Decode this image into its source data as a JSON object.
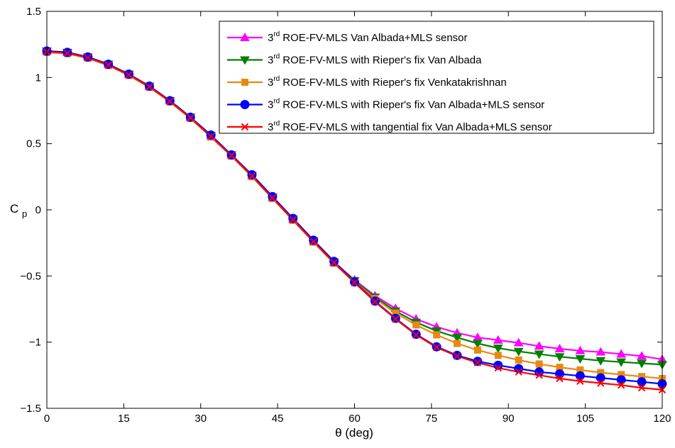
{
  "chart_data": {
    "type": "line",
    "xlabel": "θ (deg)",
    "ylabel": "C",
    "ylabel_subscript": "p",
    "xlim": [
      0,
      120
    ],
    "ylim": [
      -1.5,
      1.5
    ],
    "xticks": [
      "0",
      "15",
      "30",
      "45",
      "60",
      "75",
      "90",
      "105",
      "120"
    ],
    "yticks": [
      "-1.5",
      "-1",
      "-0.5",
      "0",
      "0.5",
      "1",
      "1.5"
    ],
    "grid": false,
    "legend_position": "top-right",
    "x": [
      0,
      4,
      8,
      12,
      16,
      20,
      24,
      28,
      32,
      36,
      40,
      44,
      48,
      52,
      56,
      60,
      64,
      68,
      72,
      76,
      80,
      84,
      88,
      92,
      96,
      100,
      104,
      108,
      112,
      116,
      120
    ],
    "series": [
      {
        "name": "ROE-FV-MLS Van Albada+MLS sensor",
        "order_prefix": "3",
        "order_sup": "rd",
        "color": "#ff00ff",
        "marker": "triangle-up",
        "values": [
          1.2,
          1.19,
          1.155,
          1.1,
          1.025,
          0.935,
          0.825,
          0.7,
          0.56,
          0.415,
          0.26,
          0.095,
          -0.07,
          -0.235,
          -0.395,
          -0.53,
          -0.65,
          -0.745,
          -0.825,
          -0.885,
          -0.93,
          -0.965,
          -0.985,
          -1.005,
          -1.03,
          -1.05,
          -1.065,
          -1.075,
          -1.09,
          -1.105,
          -1.13
        ]
      },
      {
        "name": "ROE-FV-MLS with Rieper's fix Van Albada",
        "order_prefix": "3",
        "order_sup": "rd",
        "color": "#007f00",
        "marker": "triangle-down",
        "values": [
          1.2,
          1.19,
          1.155,
          1.1,
          1.025,
          0.935,
          0.825,
          0.7,
          0.56,
          0.415,
          0.26,
          0.095,
          -0.07,
          -0.235,
          -0.395,
          -0.535,
          -0.66,
          -0.765,
          -0.85,
          -0.915,
          -0.965,
          -1.01,
          -1.045,
          -1.07,
          -1.09,
          -1.11,
          -1.125,
          -1.14,
          -1.15,
          -1.16,
          -1.17
        ]
      },
      {
        "name": "ROE-FV-MLS with Rieper's fix Venkatakrishnan",
        "order_prefix": "3",
        "order_sup": "rd",
        "color": "#e88a10",
        "marker": "square",
        "values": [
          1.19,
          1.18,
          1.145,
          1.09,
          1.015,
          0.925,
          0.815,
          0.69,
          0.55,
          0.405,
          0.25,
          0.085,
          -0.08,
          -0.245,
          -0.405,
          -0.545,
          -0.67,
          -0.78,
          -0.87,
          -0.945,
          -1.01,
          -1.06,
          -1.1,
          -1.135,
          -1.165,
          -1.19,
          -1.21,
          -1.23,
          -1.245,
          -1.26,
          -1.275
        ]
      },
      {
        "name": "ROE-FV-MLS with Rieper's fix Van Albada+MLS sensor",
        "order_prefix": "3",
        "order_sup": "rd",
        "color": "#0000ff",
        "marker": "circle",
        "values": [
          1.2,
          1.19,
          1.155,
          1.1,
          1.025,
          0.935,
          0.825,
          0.7,
          0.565,
          0.415,
          0.265,
          0.1,
          -0.065,
          -0.23,
          -0.39,
          -0.545,
          -0.69,
          -0.82,
          -0.94,
          -1.035,
          -1.1,
          -1.145,
          -1.175,
          -1.2,
          -1.225,
          -1.24,
          -1.255,
          -1.27,
          -1.285,
          -1.3,
          -1.315
        ]
      },
      {
        "name": "ROE-FV-MLS with tangential fix Van Albada+MLS sensor",
        "order_prefix": "3",
        "order_sup": "rd",
        "color": "#ff0000",
        "marker": "x",
        "values": [
          1.195,
          1.185,
          1.15,
          1.095,
          1.02,
          0.93,
          0.82,
          0.695,
          0.555,
          0.41,
          0.255,
          0.09,
          -0.075,
          -0.24,
          -0.4,
          -0.55,
          -0.695,
          -0.825,
          -0.945,
          -1.04,
          -1.105,
          -1.155,
          -1.195,
          -1.225,
          -1.25,
          -1.275,
          -1.295,
          -1.31,
          -1.325,
          -1.345,
          -1.36
        ]
      }
    ]
  }
}
